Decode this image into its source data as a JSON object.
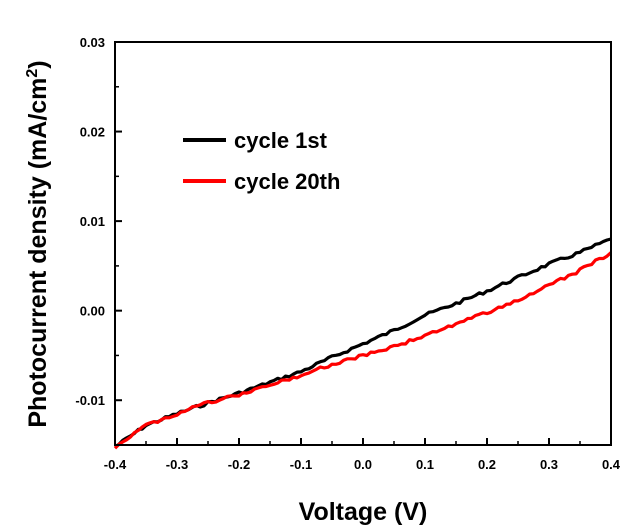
{
  "chart_data": {
    "type": "line",
    "xlabel": "Voltage (V)",
    "ylabel_main": "Photocurrent density (mA/cm",
    "ylabel_sup": "2",
    "ylabel_close": ")",
    "xlim": [
      -0.4,
      0.4
    ],
    "ylim": [
      -0.015,
      0.03
    ],
    "xticks": [
      -0.4,
      -0.3,
      -0.2,
      -0.1,
      0.0,
      0.1,
      0.2,
      0.3,
      0.4
    ],
    "xtick_labels": [
      "-0.4",
      "-0.3",
      "-0.2",
      "-0.1",
      "0.0",
      "0.1",
      "0.2",
      "0.3",
      "0.4"
    ],
    "yticks": [
      -0.01,
      0.0,
      0.01,
      0.02,
      0.03
    ],
    "ytick_labels": [
      "-0.01",
      "0.00",
      "0.01",
      "0.02",
      "0.03"
    ],
    "grid": false,
    "legend_position": "upper-left",
    "series": [
      {
        "name": "cycle 1st",
        "color": "#000000",
        "x": [
          -0.4,
          -0.35,
          -0.3,
          -0.25,
          -0.2,
          -0.15,
          -0.1,
          -0.05,
          0.0,
          0.05,
          0.1,
          0.15,
          0.2,
          0.25,
          0.3,
          0.35,
          0.4
        ],
        "y": [
          -0.0152,
          -0.0128,
          -0.0115,
          -0.0103,
          -0.0092,
          -0.008,
          -0.0068,
          -0.0052,
          -0.0037,
          -0.0022,
          -0.0005,
          0.0008,
          0.0022,
          0.0037,
          0.0052,
          0.0065,
          0.008
        ]
      },
      {
        "name": "cycle 20th",
        "color": "#ff0000",
        "x": [
          -0.4,
          -0.35,
          -0.3,
          -0.25,
          -0.2,
          -0.15,
          -0.1,
          -0.05,
          0.0,
          0.05,
          0.1,
          0.15,
          0.2,
          0.25,
          0.3,
          0.35,
          0.4
        ],
        "y": [
          -0.0152,
          -0.0128,
          -0.0115,
          -0.0103,
          -0.0094,
          -0.0083,
          -0.0072,
          -0.006,
          -0.005,
          -0.004,
          -0.0028,
          -0.0015,
          -0.0002,
          0.0012,
          0.0028,
          0.0045,
          0.0065
        ]
      }
    ]
  }
}
